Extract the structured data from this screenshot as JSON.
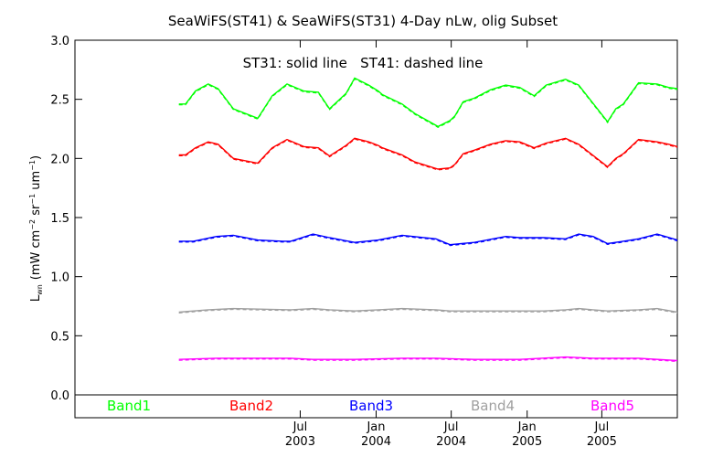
{
  "chart_data": {
    "type": "line",
    "title": "SeaWiFS(ST41) & SeaWiFS(ST31) 4-Day nLw, olig Subset",
    "annotation": "ST31: solid line   ST41: dashed line",
    "ylabel": "L_wn (mW cm^-2 sr^-1 um^-1)",
    "ylabel_parts": {
      "L": "L",
      "wn": "wn",
      "open": "(mW cm",
      "sup1": "−2",
      "mid": " sr",
      "sup2": "−1",
      "um": " um",
      "sup3": "−1",
      "close": ")"
    },
    "xlabel": "",
    "xlim": [
      "2002-01-01",
      "2005-12-31"
    ],
    "ylim": [
      0.0,
      3.0
    ],
    "y_ticks": [
      {
        "value": 0.0,
        "label": "0.0"
      },
      {
        "value": 0.5,
        "label": "0.5"
      },
      {
        "value": 1.0,
        "label": "1.0"
      },
      {
        "value": 1.5,
        "label": "1.5"
      },
      {
        "value": 2.0,
        "label": "2.0"
      },
      {
        "value": 2.5,
        "label": "2.5"
      },
      {
        "value": 3.0,
        "label": "3.0"
      }
    ],
    "x_ticks": [
      {
        "date": "2003-07-01",
        "label": "Jul",
        "year": "2003"
      },
      {
        "date": "2004-01-01",
        "label": "Jan",
        "year": "2004"
      },
      {
        "date": "2004-07-01",
        "label": "Jul",
        "year": "2004"
      },
      {
        "date": "2005-01-01",
        "label": "Jan",
        "year": "2005"
      },
      {
        "date": "2005-07-01",
        "label": "Jul",
        "year": "2005"
      }
    ],
    "grid": false,
    "legend": "bottom",
    "series": [
      {
        "name": "Band1",
        "color": "#00ff00",
        "x": [
          "2002-09-10",
          "2002-09-26",
          "2002-10-20",
          "2002-11-20",
          "2002-12-14",
          "2003-01-20",
          "2003-03-20",
          "2003-04-24",
          "2003-05-30",
          "2003-07-10",
          "2003-08-14",
          "2003-09-10",
          "2003-10-20",
          "2003-11-10",
          "2003-12-14",
          "2004-01-06",
          "2004-01-16",
          "2004-03-04",
          "2004-04-04",
          "2004-05-30",
          "2004-06-28",
          "2004-07-10",
          "2004-07-30",
          "2004-08-26",
          "2004-10-04",
          "2004-11-10",
          "2004-12-14",
          "2005-01-18",
          "2005-02-16",
          "2005-04-04",
          "2005-05-06",
          "2005-07-15",
          "2005-08-04",
          "2005-08-22",
          "2005-09-28",
          "2005-11-12",
          "2005-12-10",
          "2005-12-31"
        ],
        "y": [
          2.46,
          2.46,
          2.57,
          2.63,
          2.59,
          2.42,
          2.34,
          2.53,
          2.63,
          2.57,
          2.56,
          2.42,
          2.55,
          2.68,
          2.62,
          2.57,
          2.54,
          2.46,
          2.38,
          2.27,
          2.32,
          2.36,
          2.48,
          2.51,
          2.58,
          2.62,
          2.6,
          2.53,
          2.62,
          2.67,
          2.62,
          2.31,
          2.42,
          2.46,
          2.64,
          2.63,
          2.6,
          2.59
        ]
      },
      {
        "name": "Band2",
        "color": "#ff0000",
        "x": [
          "2002-09-10",
          "2002-09-26",
          "2002-10-20",
          "2002-11-20",
          "2002-12-14",
          "2003-01-20",
          "2003-03-20",
          "2003-04-24",
          "2003-05-30",
          "2003-07-10",
          "2003-08-14",
          "2003-09-10",
          "2003-10-20",
          "2003-11-10",
          "2003-12-14",
          "2004-01-06",
          "2004-01-16",
          "2004-03-04",
          "2004-04-04",
          "2004-05-30",
          "2004-06-28",
          "2004-07-10",
          "2004-07-30",
          "2004-08-26",
          "2004-10-04",
          "2004-11-10",
          "2004-12-14",
          "2005-01-18",
          "2005-02-16",
          "2005-04-04",
          "2005-05-06",
          "2005-07-15",
          "2005-08-04",
          "2005-08-22",
          "2005-09-28",
          "2005-11-12",
          "2005-12-10",
          "2005-12-31"
        ],
        "y": [
          2.03,
          2.03,
          2.09,
          2.14,
          2.12,
          2.0,
          1.96,
          2.09,
          2.16,
          2.1,
          2.09,
          2.02,
          2.11,
          2.17,
          2.14,
          2.11,
          2.09,
          2.03,
          1.97,
          1.91,
          1.92,
          1.95,
          2.04,
          2.07,
          2.12,
          2.15,
          2.14,
          2.09,
          2.13,
          2.17,
          2.12,
          1.93,
          2.0,
          2.04,
          2.16,
          2.14,
          2.12,
          2.1
        ]
      },
      {
        "name": "Band3",
        "color": "#0000ff",
        "x": [
          "2002-09-10",
          "2002-10-15",
          "2002-12-10",
          "2003-01-20",
          "2003-03-20",
          "2003-05-20",
          "2003-06-08",
          "2003-08-01",
          "2003-09-10",
          "2003-11-10",
          "2004-01-06",
          "2004-03-04",
          "2004-05-25",
          "2004-06-28",
          "2004-08-26",
          "2004-11-10",
          "2004-12-14",
          "2005-02-10",
          "2005-04-04",
          "2005-05-06",
          "2005-06-10",
          "2005-07-15",
          "2005-08-22",
          "2005-09-28",
          "2005-11-12",
          "2005-12-31"
        ],
        "y": [
          1.3,
          1.3,
          1.34,
          1.35,
          1.31,
          1.3,
          1.3,
          1.36,
          1.33,
          1.29,
          1.31,
          1.35,
          1.32,
          1.27,
          1.29,
          1.34,
          1.33,
          1.33,
          1.32,
          1.36,
          1.34,
          1.28,
          1.3,
          1.32,
          1.36,
          1.31
        ]
      },
      {
        "name": "Band4",
        "color": "#a0a0a0",
        "x": [
          "2002-09-10",
          "2002-11-20",
          "2003-01-20",
          "2003-06-08",
          "2003-08-01",
          "2003-09-10",
          "2003-11-10",
          "2004-01-06",
          "2004-03-04",
          "2004-05-25",
          "2004-06-28",
          "2004-08-26",
          "2004-11-10",
          "2004-12-14",
          "2005-02-10",
          "2005-04-04",
          "2005-05-06",
          "2005-06-10",
          "2005-07-15",
          "2005-09-28",
          "2005-11-12",
          "2005-12-31"
        ],
        "y": [
          0.7,
          0.72,
          0.73,
          0.72,
          0.73,
          0.72,
          0.71,
          0.72,
          0.73,
          0.72,
          0.71,
          0.71,
          0.71,
          0.71,
          0.71,
          0.72,
          0.73,
          0.72,
          0.71,
          0.72,
          0.73,
          0.7
        ]
      },
      {
        "name": "Band5",
        "color": "#ff00ff",
        "x": [
          "2002-09-10",
          "2002-12-10",
          "2003-04-01",
          "2003-06-08",
          "2003-08-01",
          "2003-09-10",
          "2003-11-10",
          "2004-03-04",
          "2004-05-25",
          "2004-08-26",
          "2004-12-14",
          "2005-04-04",
          "2005-06-10",
          "2005-07-15",
          "2005-09-28",
          "2005-12-31"
        ],
        "y": [
          0.3,
          0.31,
          0.31,
          0.31,
          0.3,
          0.3,
          0.3,
          0.31,
          0.31,
          0.3,
          0.3,
          0.32,
          0.31,
          0.31,
          0.31,
          0.29
        ]
      }
    ]
  }
}
